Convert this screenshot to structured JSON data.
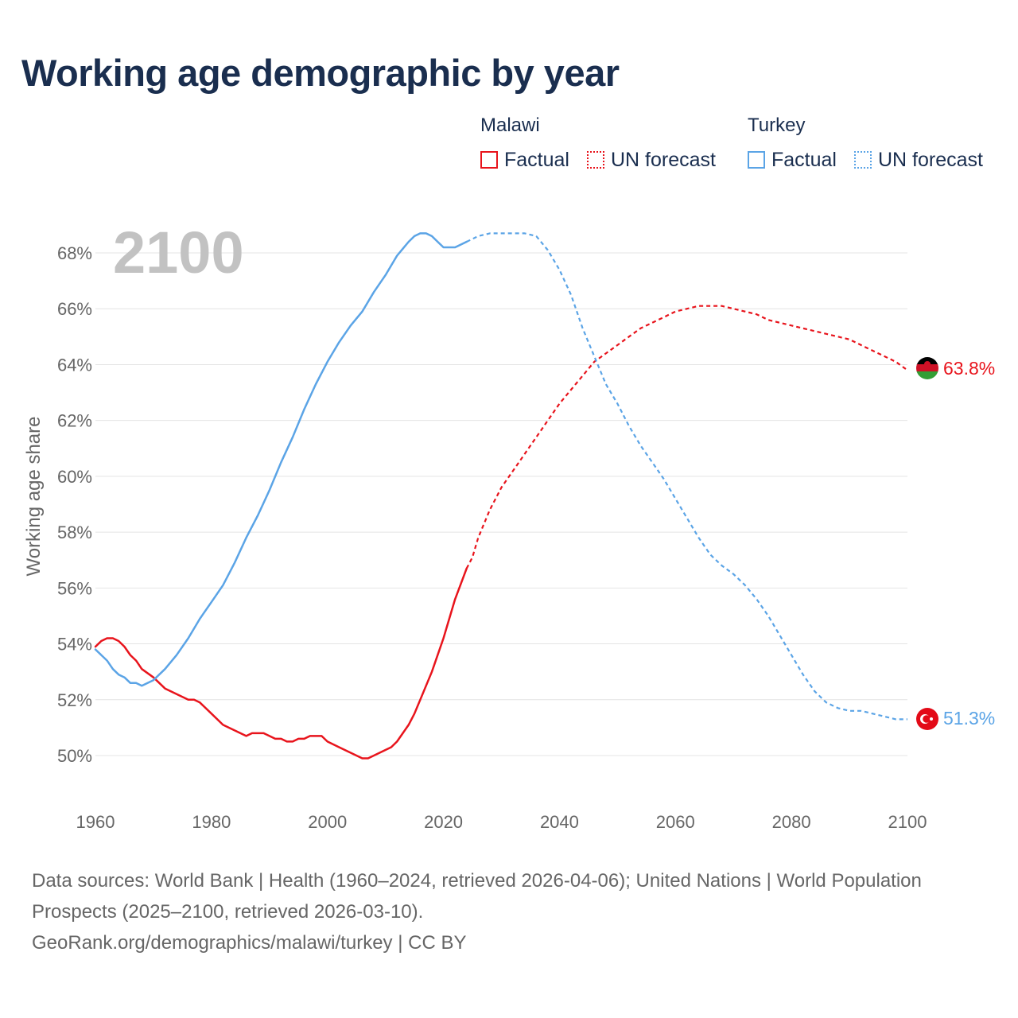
{
  "title": "Working age demographic by year",
  "legend": {
    "groups": [
      {
        "name": "Malawi",
        "color": "#e8141c",
        "factual_label": "Factual",
        "forecast_label": "UN forecast"
      },
      {
        "name": "Turkey",
        "color": "#5ba4e6",
        "factual_label": "Factual",
        "forecast_label": "UN forecast"
      }
    ]
  },
  "year_watermark": "2100",
  "footer": {
    "sources": "Data sources: World Bank | Health (1960–2024, retrieved 2026-04-06); United Nations | World Population Prospects (2025–2100, retrieved 2026-03-10).",
    "attribution": "GeoRank.org/demographics/malawi/turkey | CC BY"
  },
  "chart_data": {
    "type": "line",
    "title": "Working age demographic by year",
    "xlabel": "",
    "ylabel": "Working age share",
    "xlim": [
      1960,
      2100
    ],
    "ylim": [
      49,
      69.5
    ],
    "x_ticks": [
      1960,
      1980,
      2000,
      2020,
      2040,
      2060,
      2080,
      2100
    ],
    "x_tick_labels": [
      "1960",
      "1980",
      "2000",
      "2020",
      "2040",
      "2060",
      "2080",
      "2100"
    ],
    "y_ticks": [
      50,
      52,
      54,
      56,
      58,
      60,
      62,
      64,
      66,
      68
    ],
    "y_tick_labels": [
      "50%",
      "52%",
      "54%",
      "56%",
      "58%",
      "60%",
      "62%",
      "64%",
      "66%",
      "68%"
    ],
    "grid": true,
    "factual_end_year": 2024,
    "series": [
      {
        "name": "Malawi",
        "color": "#e8141c",
        "end_label": "63.8%",
        "x": [
          1960,
          1961,
          1962,
          1963,
          1964,
          1965,
          1966,
          1967,
          1968,
          1970,
          1972,
          1974,
          1976,
          1977,
          1978,
          1980,
          1982,
          1984,
          1986,
          1987,
          1988,
          1989,
          1990,
          1991,
          1992,
          1993,
          1994,
          1995,
          1996,
          1997,
          1998,
          1999,
          2000,
          2002,
          2004,
          2006,
          2007,
          2008,
          2010,
          2011,
          2012,
          2013,
          2014,
          2015,
          2016,
          2018,
          2020,
          2022,
          2024,
          2025,
          2026,
          2028,
          2030,
          2032,
          2034,
          2036,
          2038,
          2040,
          2042,
          2044,
          2046,
          2048,
          2050,
          2052,
          2054,
          2056,
          2058,
          2060,
          2062,
          2064,
          2066,
          2068,
          2070,
          2072,
          2074,
          2076,
          2078,
          2080,
          2082,
          2084,
          2086,
          2088,
          2090,
          2092,
          2094,
          2096,
          2098,
          2100
        ],
        "values": [
          53.9,
          54.1,
          54.2,
          54.2,
          54.1,
          53.9,
          53.6,
          53.4,
          53.1,
          52.8,
          52.4,
          52.2,
          52.0,
          52.0,
          51.9,
          51.5,
          51.1,
          50.9,
          50.7,
          50.8,
          50.8,
          50.8,
          50.7,
          50.6,
          50.6,
          50.5,
          50.5,
          50.6,
          50.6,
          50.7,
          50.7,
          50.7,
          50.5,
          50.3,
          50.1,
          49.9,
          49.9,
          50.0,
          50.2,
          50.3,
          50.5,
          50.8,
          51.1,
          51.5,
          52.0,
          53.0,
          54.2,
          55.6,
          56.7,
          57.1,
          57.8,
          58.8,
          59.6,
          60.2,
          60.8,
          61.4,
          62.0,
          62.6,
          63.1,
          63.6,
          64.1,
          64.4,
          64.7,
          65.0,
          65.3,
          65.5,
          65.7,
          65.9,
          66.0,
          66.1,
          66.1,
          66.1,
          66.0,
          65.9,
          65.8,
          65.6,
          65.5,
          65.4,
          65.3,
          65.2,
          65.1,
          65.0,
          64.9,
          64.7,
          64.5,
          64.3,
          64.1,
          63.8
        ]
      },
      {
        "name": "Turkey",
        "color": "#5ba4e6",
        "end_label": "51.3%",
        "x": [
          1960,
          1962,
          1963,
          1964,
          1965,
          1966,
          1967,
          1968,
          1969,
          1970,
          1972,
          1974,
          1976,
          1978,
          1980,
          1982,
          1984,
          1986,
          1988,
          1990,
          1992,
          1994,
          1996,
          1998,
          2000,
          2002,
          2004,
          2006,
          2008,
          2010,
          2012,
          2014,
          2015,
          2016,
          2017,
          2018,
          2019,
          2020,
          2021,
          2022,
          2023,
          2024,
          2026,
          2028,
          2030,
          2032,
          2034,
          2036,
          2038,
          2040,
          2042,
          2044,
          2046,
          2048,
          2050,
          2052,
          2054,
          2056,
          2058,
          2060,
          2062,
          2064,
          2066,
          2068,
          2070,
          2072,
          2074,
          2076,
          2078,
          2080,
          2082,
          2084,
          2086,
          2088,
          2090,
          2092,
          2094,
          2096,
          2098,
          2100
        ],
        "values": [
          53.8,
          53.4,
          53.1,
          52.9,
          52.8,
          52.6,
          52.6,
          52.5,
          52.6,
          52.7,
          53.1,
          53.6,
          54.2,
          54.9,
          55.5,
          56.1,
          56.9,
          57.8,
          58.6,
          59.5,
          60.5,
          61.4,
          62.4,
          63.3,
          64.1,
          64.8,
          65.4,
          65.9,
          66.6,
          67.2,
          67.9,
          68.4,
          68.6,
          68.7,
          68.7,
          68.6,
          68.4,
          68.2,
          68.2,
          68.2,
          68.3,
          68.4,
          68.6,
          68.7,
          68.7,
          68.7,
          68.7,
          68.6,
          68.1,
          67.4,
          66.5,
          65.3,
          64.3,
          63.3,
          62.6,
          61.8,
          61.1,
          60.5,
          59.9,
          59.2,
          58.5,
          57.8,
          57.2,
          56.8,
          56.5,
          56.1,
          55.6,
          55.0,
          54.3,
          53.6,
          52.9,
          52.3,
          51.9,
          51.7,
          51.6,
          51.6,
          51.5,
          51.4,
          51.3,
          51.3
        ]
      }
    ]
  }
}
